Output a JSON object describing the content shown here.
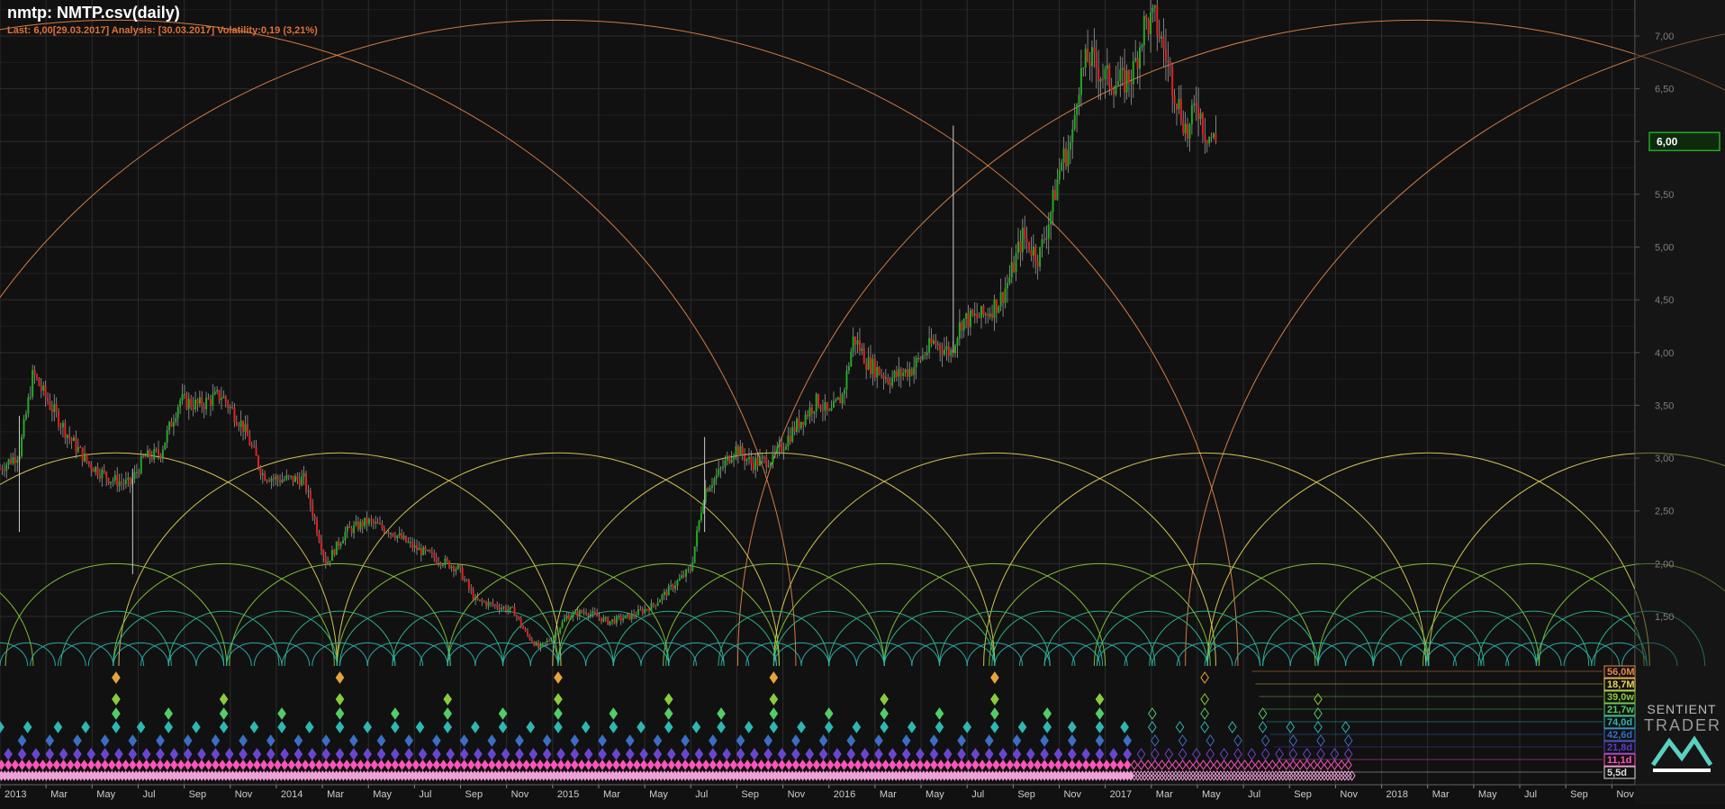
{
  "header": {
    "title": "nmtp: NMTP.csv(daily)",
    "subtitle": "Last: 6,00[29.03.2017] Analysis: [30.03.2017] Volatility:0,19 (3,21%)"
  },
  "colors": {
    "background": "#111111",
    "grid": "#2c2c2c",
    "candle_up": "#22aa22",
    "candle_down": "#dd2222",
    "cycle_orange": "#e8884a",
    "cycle_yellow": "#e6d65a",
    "cycle_green": "#8acc3c",
    "cycle_teal": "#2fc08e",
    "cycle_cyan": "#2fb7b2"
  },
  "brand": {
    "line1": "SENTIENT",
    "line2": "TRADER",
    "logo_icon": "wave-triangle-logo-icon"
  },
  "chart_data": {
    "type": "candlestick",
    "x_ticks": [
      "2013",
      "Mar",
      "May",
      "Jul",
      "Sep",
      "Nov",
      "2014",
      "Mar",
      "May",
      "Jul",
      "Sep",
      "Nov",
      "2015",
      "Mar",
      "May",
      "Jul",
      "Sep",
      "Nov",
      "2016",
      "Mar",
      "May",
      "Jul",
      "Sep",
      "Nov",
      "2017",
      "Mar",
      "May",
      "Jul",
      "Sep",
      "Nov",
      "2018",
      "Mar",
      "May",
      "Jul",
      "Sep",
      "Nov"
    ],
    "y_ticks": [
      "7,00",
      "6,50",
      "6,00",
      "5,50",
      "5,00",
      "4,50",
      "4,00",
      "3,50",
      "3,00",
      "2,50",
      "2,00",
      "1,50"
    ],
    "ylim": [
      1.0,
      7.35
    ],
    "xlim": [
      2013.0,
      2018.917
    ],
    "last_price": {
      "value": 6.0,
      "label": "6,00"
    },
    "price_keypoints": [
      [
        2013.0,
        2.9
      ],
      [
        2013.07,
        3.05
      ],
      [
        2013.12,
        3.8
      ],
      [
        2013.16,
        3.6
      ],
      [
        2013.25,
        3.2
      ],
      [
        2013.32,
        2.95
      ],
      [
        2013.4,
        2.8
      ],
      [
        2013.47,
        2.75
      ],
      [
        2013.52,
        3.0
      ],
      [
        2013.58,
        3.05
      ],
      [
        2013.65,
        3.55
      ],
      [
        2013.72,
        3.5
      ],
      [
        2013.8,
        3.6
      ],
      [
        2013.88,
        3.3
      ],
      [
        2013.95,
        2.85
      ],
      [
        2014.0,
        2.8
      ],
      [
        2014.1,
        2.8
      ],
      [
        2014.14,
        2.4
      ],
      [
        2014.18,
        2.0
      ],
      [
        2014.25,
        2.3
      ],
      [
        2014.33,
        2.4
      ],
      [
        2014.42,
        2.3
      ],
      [
        2014.5,
        2.15
      ],
      [
        2014.58,
        2.05
      ],
      [
        2014.66,
        1.95
      ],
      [
        2014.72,
        1.65
      ],
      [
        2014.8,
        1.6
      ],
      [
        2014.86,
        1.55
      ],
      [
        2014.9,
        1.35
      ],
      [
        2014.95,
        1.2
      ],
      [
        2015.0,
        1.3
      ],
      [
        2015.05,
        1.5
      ],
      [
        2015.12,
        1.55
      ],
      [
        2015.2,
        1.45
      ],
      [
        2015.28,
        1.5
      ],
      [
        2015.36,
        1.6
      ],
      [
        2015.42,
        1.75
      ],
      [
        2015.5,
        1.95
      ],
      [
        2015.55,
        2.7
      ],
      [
        2015.6,
        2.85
      ],
      [
        2015.66,
        3.1
      ],
      [
        2015.72,
        2.95
      ],
      [
        2015.8,
        3.0
      ],
      [
        2015.88,
        3.3
      ],
      [
        2015.96,
        3.55
      ],
      [
        2016.0,
        3.4
      ],
      [
        2016.05,
        3.6
      ],
      [
        2016.09,
        4.15
      ],
      [
        2016.14,
        3.9
      ],
      [
        2016.22,
        3.75
      ],
      [
        2016.3,
        3.85
      ],
      [
        2016.38,
        4.1
      ],
      [
        2016.44,
        4.0
      ],
      [
        2016.48,
        4.3
      ],
      [
        2016.56,
        4.35
      ],
      [
        2016.62,
        4.5
      ],
      [
        2016.66,
        4.75
      ],
      [
        2016.7,
        5.1
      ],
      [
        2016.76,
        4.9
      ],
      [
        2016.8,
        5.3
      ],
      [
        2016.84,
        5.8
      ],
      [
        2016.88,
        6.0
      ],
      [
        2016.9,
        6.55
      ],
      [
        2016.94,
        6.8
      ],
      [
        2017.0,
        6.6
      ],
      [
        2017.06,
        6.55
      ],
      [
        2017.1,
        6.65
      ],
      [
        2017.14,
        7.1
      ],
      [
        2017.18,
        7.15
      ],
      [
        2017.22,
        6.8
      ],
      [
        2017.26,
        6.4
      ],
      [
        2017.3,
        6.05
      ],
      [
        2017.33,
        6.4
      ],
      [
        2017.36,
        6.1
      ],
      [
        2017.4,
        6.0
      ]
    ],
    "cycle_arcs": [
      {
        "color": "cycle_orange",
        "centers": [
          2013.42,
          2015.02,
          2018.13,
          2019.75
        ],
        "radius_years": 2.46,
        "peak_value": 7.15
      },
      {
        "color": "cycle_yellow",
        "centers": [
          2013.42,
          2014.23,
          2015.02,
          2015.8,
          2016.6,
          2017.36,
          2018.17,
          2018.97
        ],
        "radius_years": 0.8,
        "peak_value": 3.05
      },
      {
        "color": "cycle_green",
        "centers": [
          2012.72,
          2013.42,
          2013.81,
          2014.23,
          2014.62,
          2015.02,
          2015.42,
          2015.8,
          2016.2,
          2016.6,
          2016.98,
          2017.36,
          2017.77,
          2018.17,
          2018.55,
          2018.97
        ],
        "radius_years": 0.4,
        "peak_value": 2.0
      },
      {
        "color": "cycle_teal",
        "centers": [
          2012.8,
          2013.42,
          2013.61,
          2013.81,
          2014.02,
          2014.23,
          2014.43,
          2014.62,
          2014.82,
          2015.02,
          2015.22,
          2015.42,
          2015.61,
          2015.8,
          2016.0,
          2016.2,
          2016.4,
          2016.6,
          2016.79,
          2016.98,
          2017.17,
          2017.36,
          2017.57,
          2017.77,
          2017.97,
          2018.17,
          2018.36,
          2018.55,
          2018.76,
          2018.97
        ],
        "radius_years": 0.2,
        "peak_value": 1.55
      },
      {
        "color": "cycle_cyan",
        "centers": [
          2012.9,
          2013.0,
          2013.1,
          2013.21,
          2013.31,
          2013.42,
          2013.51,
          2013.61,
          2013.71,
          2013.81,
          2013.92,
          2014.02,
          2014.12,
          2014.23,
          2014.33,
          2014.43,
          2014.52,
          2014.62,
          2014.72,
          2014.82,
          2014.92,
          2015.02,
          2015.12,
          2015.22,
          2015.32,
          2015.42,
          2015.52,
          2015.61,
          2015.71,
          2015.8,
          2015.9,
          2016.0,
          2016.1,
          2016.2,
          2016.3,
          2016.4,
          2016.5,
          2016.6,
          2016.7,
          2016.79,
          2016.88,
          2016.98,
          2017.07,
          2017.17,
          2017.27,
          2017.36,
          2017.46,
          2017.57,
          2017.67,
          2017.77,
          2017.87,
          2017.97,
          2018.07,
          2018.17,
          2018.26,
          2018.36,
          2018.46,
          2018.55,
          2018.66,
          2018.76,
          2018.86,
          2018.97
        ],
        "radius_years": 0.1,
        "peak_value": 1.25
      }
    ],
    "cycle_labels": [
      {
        "label": "56,0M",
        "color": "#e8884a"
      },
      {
        "label": "18,7M",
        "color": "#e6d65a"
      },
      {
        "label": "39,0w",
        "color": "#8acc3c"
      },
      {
        "label": "21,7w",
        "color": "#55cc66"
      },
      {
        "label": "74,0d",
        "color": "#2fb7b2"
      },
      {
        "label": "42,6d",
        "color": "#3a6fc2"
      },
      {
        "label": "21,8d",
        "color": "#5a3ec8"
      },
      {
        "label": "11,1d",
        "color": "#ff55bb"
      },
      {
        "label": "5,5d",
        "color": "#dddddd"
      }
    ]
  }
}
